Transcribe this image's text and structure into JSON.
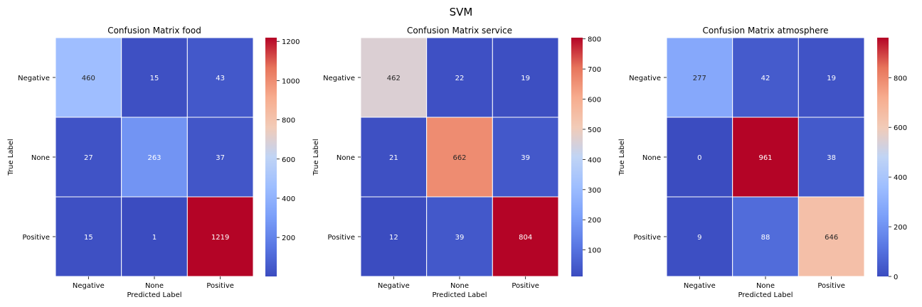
{
  "figure": {
    "title": "SVM"
  },
  "chart_data": [
    {
      "type": "heatmap",
      "title": "Confusion Matrix food",
      "xlabel": "Predicted Label",
      "ylabel": "True Label",
      "x_categories": [
        "Negative",
        "None",
        "Positive"
      ],
      "y_categories": [
        "Negative",
        "None",
        "Positive"
      ],
      "values": [
        [
          460,
          15,
          43
        ],
        [
          27,
          263,
          37
        ],
        [
          15,
          1,
          1219
        ]
      ],
      "colormap": "coolwarm",
      "colorbar": {
        "min": 1,
        "max": 1219,
        "ticks": [
          200,
          400,
          600,
          800,
          1000,
          1200
        ]
      }
    },
    {
      "type": "heatmap",
      "title": "Confusion Matrix service",
      "xlabel": "Predicted Label",
      "ylabel": "True Label",
      "x_categories": [
        "Negative",
        "None",
        "Positive"
      ],
      "y_categories": [
        "Negative",
        "None",
        "Positive"
      ],
      "values": [
        [
          462,
          22,
          19
        ],
        [
          21,
          662,
          39
        ],
        [
          12,
          39,
          804
        ]
      ],
      "colormap": "coolwarm",
      "colorbar": {
        "min": 12,
        "max": 804,
        "ticks": [
          100,
          200,
          300,
          400,
          500,
          600,
          700,
          800
        ]
      }
    },
    {
      "type": "heatmap",
      "title": "Confusion Matrix atmosphere",
      "xlabel": "Predicted Label",
      "ylabel": "True Label",
      "x_categories": [
        "Negative",
        "None",
        "Positive"
      ],
      "y_categories": [
        "Negative",
        "None",
        "Positive"
      ],
      "values": [
        [
          277,
          42,
          19
        ],
        [
          0,
          961,
          38
        ],
        [
          9,
          88,
          646
        ]
      ],
      "colormap": "coolwarm",
      "colorbar": {
        "min": 0,
        "max": 961,
        "ticks": [
          0,
          200,
          400,
          600,
          800
        ]
      }
    }
  ]
}
